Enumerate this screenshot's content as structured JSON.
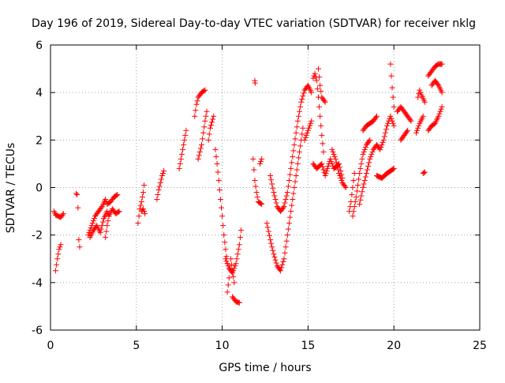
{
  "chart_data": {
    "type": "scatter",
    "title": "Day 196 of 2019, Sidereal Day-to-day VTEC variation (SDTVAR) for receiver nklg",
    "xlabel": "GPS time / hours",
    "ylabel": "SDTVAR / TECUs",
    "xlim": [
      0,
      25
    ],
    "ylim": [
      -6,
      6
    ],
    "xticks": [
      0,
      5,
      10,
      15,
      20,
      25
    ],
    "yticks": [
      -6,
      -4,
      -2,
      0,
      2,
      4,
      6
    ],
    "grid": true,
    "marker": "+",
    "color": "#ff0000",
    "series": [
      {
        "name": "SDTVAR",
        "segments": [
          [
            [
              0.2,
              -1.0
            ],
            [
              0.3,
              -1.15
            ],
            [
              0.45,
              -1.2
            ],
            [
              0.6,
              -1.25
            ],
            [
              0.75,
              -1.1
            ]
          ],
          [
            [
              0.3,
              -3.5
            ],
            [
              0.4,
              -3.0
            ],
            [
              0.5,
              -2.6
            ],
            [
              0.6,
              -2.4
            ]
          ],
          [
            [
              1.5,
              -0.25
            ],
            [
              1.55,
              -0.3
            ],
            [
              1.6,
              -0.85
            ],
            [
              1.65,
              -2.2
            ],
            [
              1.7,
              -2.5
            ]
          ],
          [
            [
              2.2,
              -2.0
            ],
            [
              2.4,
              -1.6
            ],
            [
              2.6,
              -1.2
            ],
            [
              2.8,
              -1.0
            ],
            [
              3.0,
              -0.8
            ],
            [
              3.2,
              -0.5
            ],
            [
              3.3,
              -0.7
            ],
            [
              3.5,
              -0.6
            ],
            [
              3.7,
              -0.4
            ],
            [
              3.9,
              -0.3
            ]
          ],
          [
            [
              2.3,
              -2.1
            ],
            [
              2.5,
              -1.8
            ],
            [
              2.7,
              -1.6
            ],
            [
              2.9,
              -1.9
            ],
            [
              3.1,
              -1.3
            ],
            [
              3.3,
              -1.0
            ],
            [
              3.4,
              -1.2
            ],
            [
              3.6,
              -0.9
            ],
            [
              3.8,
              -1.1
            ],
            [
              4.0,
              -1.0
            ]
          ],
          [
            [
              3.2,
              -2.1
            ],
            [
              3.3,
              -1.6
            ],
            [
              3.4,
              -1.2
            ]
          ],
          [
            [
              5.1,
              -1.5
            ],
            [
              5.2,
              -0.9
            ],
            [
              5.3,
              -0.6
            ],
            [
              5.4,
              -0.2
            ],
            [
              5.45,
              0.1
            ]
          ],
          [
            [
              5.3,
              -1.0
            ],
            [
              5.4,
              -0.9
            ],
            [
              5.5,
              -1.1
            ]
          ],
          [
            [
              6.2,
              -0.5
            ],
            [
              6.3,
              -0.1
            ],
            [
              6.4,
              0.2
            ],
            [
              6.5,
              0.5
            ],
            [
              6.6,
              0.7
            ]
          ],
          [
            [
              7.5,
              0.8
            ],
            [
              7.6,
              1.2
            ],
            [
              7.7,
              1.6
            ],
            [
              7.8,
              2.0
            ],
            [
              7.9,
              2.4
            ]
          ],
          [
            [
              8.4,
              3.0
            ],
            [
              8.5,
              3.5
            ],
            [
              8.6,
              3.8
            ],
            [
              8.8,
              4.0
            ],
            [
              9.0,
              4.1
            ]
          ],
          [
            [
              8.6,
              1.2
            ],
            [
              8.8,
              1.8
            ],
            [
              9.0,
              2.8
            ],
            [
              9.1,
              3.2
            ]
          ],
          [
            [
              9.2,
              2.0
            ],
            [
              9.3,
              2.5
            ],
            [
              9.5,
              3.0
            ]
          ],
          [
            [
              9.6,
              1.6
            ],
            [
              9.7,
              1.0
            ],
            [
              9.8,
              0.3
            ],
            [
              9.9,
              -0.5
            ],
            [
              10.0,
              -1.2
            ],
            [
              10.1,
              -2.0
            ],
            [
              10.2,
              -2.6
            ],
            [
              10.3,
              -3.2
            ]
          ],
          [
            [
              10.3,
              -4.4
            ],
            [
              10.4,
              -3.8
            ],
            [
              10.5,
              -3.0
            ],
            [
              10.6,
              -3.5
            ],
            [
              10.7,
              -4.0
            ]
          ],
          [
            [
              10.2,
              -3.0
            ],
            [
              10.4,
              -3.4
            ],
            [
              10.6,
              -3.6
            ],
            [
              10.8,
              -3.2
            ],
            [
              11.0,
              -2.4
            ],
            [
              11.1,
              -1.8
            ]
          ],
          [
            [
              10.6,
              -4.6
            ],
            [
              10.8,
              -4.8
            ],
            [
              11.0,
              -4.85
            ]
          ],
          [
            [
              11.9,
              4.5
            ],
            [
              11.92,
              4.4
            ]
          ],
          [
            [
              11.8,
              1.2
            ],
            [
              11.9,
              0.3
            ],
            [
              12.0,
              -0.2
            ],
            [
              12.1,
              -0.6
            ],
            [
              12.3,
              -0.7
            ]
          ],
          [
            [
              12.2,
              1.0
            ],
            [
              12.3,
              1.2
            ]
          ],
          [
            [
              12.6,
              -1.5
            ],
            [
              12.8,
              -2.2
            ],
            [
              13.0,
              -2.8
            ],
            [
              13.2,
              -3.3
            ],
            [
              13.4,
              -3.5
            ],
            [
              13.6,
              -3.0
            ],
            [
              13.8,
              -2.0
            ],
            [
              14.0,
              -1.0
            ],
            [
              14.2,
              0.0
            ],
            [
              14.4,
              1.0
            ],
            [
              14.6,
              2.0
            ],
            [
              14.7,
              2.5
            ]
          ],
          [
            [
              12.8,
              0.5
            ],
            [
              13.0,
              -0.2
            ],
            [
              13.2,
              -0.8
            ],
            [
              13.4,
              -1.0
            ],
            [
              13.6,
              -0.8
            ],
            [
              13.8,
              -0.2
            ],
            [
              14.0,
              0.8
            ],
            [
              14.2,
              1.8
            ],
            [
              14.4,
              2.8
            ],
            [
              14.6,
              3.6
            ],
            [
              14.8,
              4.1
            ],
            [
              15.0,
              4.3
            ],
            [
              15.2,
              4.0
            ]
          ],
          [
            [
              14.8,
              2.0
            ],
            [
              15.0,
              2.4
            ],
            [
              15.2,
              2.8
            ]
          ],
          [
            [
              15.3,
              4.6
            ],
            [
              15.4,
              4.8
            ],
            [
              15.5,
              4.5
            ],
            [
              15.6,
              3.8
            ],
            [
              15.7,
              3.0
            ],
            [
              15.8,
              2.2
            ],
            [
              15.9,
              1.5
            ]
          ],
          [
            [
              15.6,
              5.0
            ],
            [
              15.7,
              4.3
            ],
            [
              15.8,
              3.8
            ],
            [
              16.0,
              3.6
            ]
          ],
          [
            [
              15.3,
              1.0
            ],
            [
              15.5,
              0.8
            ],
            [
              15.8,
              1.0
            ],
            [
              16.0,
              0.5
            ],
            [
              16.3,
              1.2
            ],
            [
              16.5,
              0.8
            ],
            [
              16.8,
              1.0
            ],
            [
              17.0,
              0.4
            ]
          ],
          [
            [
              16.4,
              1.6
            ],
            [
              16.6,
              1.2
            ],
            [
              16.8,
              0.6
            ],
            [
              17.0,
              0.2
            ],
            [
              17.2,
              0.0
            ]
          ],
          [
            [
              17.4,
              -1.0
            ],
            [
              17.5,
              -0.6
            ],
            [
              17.6,
              0.0
            ],
            [
              17.7,
              0.6
            ]
          ],
          [
            [
              17.6,
              -1.2
            ],
            [
              17.8,
              -0.4
            ],
            [
              18.0,
              0.6
            ],
            [
              18.2,
              1.4
            ],
            [
              18.4,
              1.8
            ],
            [
              18.6,
              2.0
            ]
          ],
          [
            [
              18.0,
              -0.7
            ],
            [
              18.2,
              0.0
            ],
            [
              18.4,
              0.6
            ],
            [
              18.6,
              1.2
            ],
            [
              18.8,
              1.6
            ],
            [
              19.0,
              1.8
            ],
            [
              19.2,
              1.6
            ],
            [
              19.4,
              2.0
            ],
            [
              19.6,
              2.6
            ],
            [
              19.8,
              3.0
            ],
            [
              20.0,
              2.6
            ]
          ],
          [
            [
              18.2,
              2.4
            ],
            [
              18.4,
              2.6
            ],
            [
              18.8,
              2.8
            ],
            [
              19.0,
              3.0
            ]
          ],
          [
            [
              19.0,
              0.5
            ],
            [
              19.3,
              0.4
            ],
            [
              19.6,
              0.6
            ],
            [
              20.0,
              0.8
            ]
          ],
          [
            [
              19.8,
              5.2
            ],
            [
              19.9,
              4.2
            ],
            [
              20.0,
              3.4
            ]
          ],
          [
            [
              20.2,
              3.2
            ],
            [
              20.4,
              3.4
            ],
            [
              20.6,
              3.2
            ],
            [
              20.8,
              3.0
            ],
            [
              21.0,
              2.8
            ]
          ],
          [
            [
              20.4,
              2.0
            ],
            [
              20.6,
              2.2
            ],
            [
              20.8,
              2.4
            ]
          ],
          [
            [
              21.4,
              3.8
            ],
            [
              21.5,
              4.1
            ],
            [
              21.6,
              3.9
            ],
            [
              21.8,
              3.6
            ]
          ],
          [
            [
              21.3,
              2.3
            ],
            [
              21.5,
              2.7
            ],
            [
              21.7,
              3.0
            ]
          ],
          [
            [
              21.7,
              0.6
            ],
            [
              21.8,
              0.65
            ]
          ],
          [
            [
              22.0,
              4.7
            ],
            [
              22.2,
              4.9
            ],
            [
              22.4,
              5.1
            ],
            [
              22.6,
              5.2
            ],
            [
              22.8,
              5.2
            ]
          ],
          [
            [
              22.2,
              4.3
            ],
            [
              22.4,
              4.5
            ],
            [
              22.6,
              4.3
            ],
            [
              22.8,
              4.0
            ]
          ],
          [
            [
              22.0,
              2.4
            ],
            [
              22.2,
              2.6
            ],
            [
              22.4,
              2.7
            ],
            [
              22.6,
              3.0
            ],
            [
              22.8,
              3.4
            ]
          ]
        ]
      }
    ]
  }
}
